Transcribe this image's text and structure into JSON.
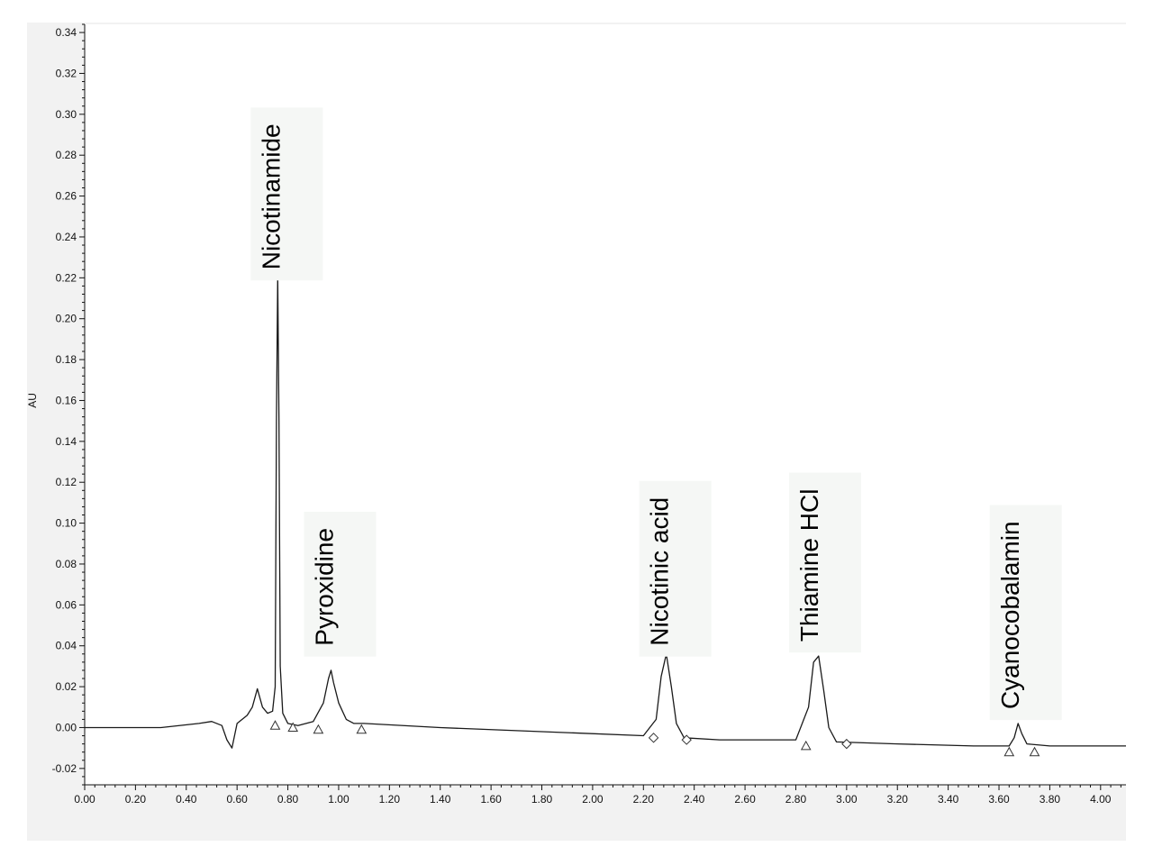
{
  "chart_data": {
    "type": "line",
    "title": "",
    "xlabel": "",
    "ylabel": "AU",
    "xlim": [
      0.0,
      4.1
    ],
    "ylim": [
      -0.028,
      0.344
    ],
    "x_ticks": [
      "0.00",
      "0.20",
      "0.40",
      "0.60",
      "0.80",
      "1.00",
      "1.20",
      "1.40",
      "1.60",
      "1.80",
      "2.00",
      "2.20",
      "2.40",
      "2.60",
      "2.80",
      "3.00",
      "3.20",
      "3.40",
      "3.60",
      "3.80",
      "4.00"
    ],
    "y_ticks": [
      "-0.02",
      "0.00",
      "0.02",
      "0.04",
      "0.06",
      "0.08",
      "0.10",
      "0.12",
      "0.14",
      "0.16",
      "0.18",
      "0.20",
      "0.22",
      "0.24",
      "0.26",
      "0.28",
      "0.30",
      "0.32",
      "0.34"
    ],
    "grid": false,
    "series": [
      {
        "color": "#1a1a1a",
        "x": [
          0.0,
          0.3,
          0.45,
          0.5,
          0.54,
          0.56,
          0.58,
          0.6,
          0.62,
          0.64,
          0.66,
          0.68,
          0.7,
          0.72,
          0.74,
          0.75,
          0.755,
          0.76,
          0.765,
          0.77,
          0.78,
          0.8,
          0.84,
          0.9,
          0.94,
          0.96,
          0.97,
          0.98,
          1.0,
          1.03,
          1.06,
          1.1,
          1.4,
          1.8,
          2.2,
          2.25,
          2.27,
          2.29,
          2.31,
          2.33,
          2.36,
          2.5,
          2.8,
          2.85,
          2.87,
          2.89,
          2.91,
          2.93,
          2.96,
          3.2,
          3.5,
          3.64,
          3.66,
          3.675,
          3.69,
          3.71,
          3.8,
          4.1
        ],
        "y": [
          0.0,
          0.0,
          0.002,
          0.003,
          0.001,
          -0.006,
          -0.01,
          0.002,
          0.004,
          0.006,
          0.01,
          0.019,
          0.01,
          0.007,
          0.008,
          0.02,
          0.15,
          0.221,
          0.15,
          0.03,
          0.007,
          0.002,
          0.001,
          0.003,
          0.012,
          0.024,
          0.028,
          0.022,
          0.012,
          0.004,
          0.002,
          0.002,
          0.0,
          -0.002,
          -0.004,
          0.004,
          0.025,
          0.036,
          0.02,
          0.002,
          -0.005,
          -0.006,
          -0.006,
          0.01,
          0.032,
          0.035,
          0.018,
          0.0,
          -0.007,
          -0.008,
          -0.009,
          -0.009,
          -0.005,
          0.002,
          -0.003,
          -0.008,
          -0.009,
          -0.009
        ]
      }
    ],
    "peak_labels": [
      {
        "text": "Nicotinamide",
        "x": 0.76
      },
      {
        "text": "Pyroxidine",
        "x": 0.97
      },
      {
        "text": "Nicotinic acid",
        "x": 2.29
      },
      {
        "text": "Thiamine HCl",
        "x": 2.88
      },
      {
        "text": "Cyanocobalamin",
        "x": 3.67
      }
    ],
    "integration_markers": [
      {
        "shape": "triangle",
        "x": 0.75,
        "y": 0.001
      },
      {
        "shape": "triangle",
        "x": 0.82,
        "y": 0.0
      },
      {
        "shape": "triangle",
        "x": 0.92,
        "y": -0.001
      },
      {
        "shape": "triangle",
        "x": 1.09,
        "y": -0.001
      },
      {
        "shape": "diamond",
        "x": 2.24,
        "y": -0.005
      },
      {
        "shape": "diamond",
        "x": 2.37,
        "y": -0.006
      },
      {
        "shape": "triangle",
        "x": 2.84,
        "y": -0.009
      },
      {
        "shape": "diamond",
        "x": 3.0,
        "y": -0.008
      },
      {
        "shape": "triangle",
        "x": 3.64,
        "y": -0.012
      },
      {
        "shape": "triangle",
        "x": 3.74,
        "y": -0.012
      }
    ]
  }
}
